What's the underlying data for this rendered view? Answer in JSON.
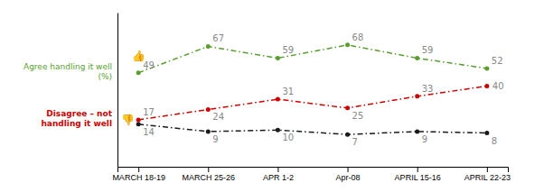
{
  "chart_data": {
    "type": "line",
    "categories": [
      "MARCH 18-19",
      "MARCH 25-26",
      "APR 1-2",
      "Apr-08",
      "APRIL 15-16",
      "APRIL 22-23"
    ],
    "series": [
      {
        "color": "#5a9e2f",
        "values": [
          49,
          67,
          59,
          68,
          59,
          52
        ]
      },
      {
        "color": "#cc0000",
        "values": [
          17,
          24,
          31,
          25,
          33,
          40
        ]
      },
      {
        "color": "#1a1a1a",
        "values": [
          14,
          9,
          10,
          7,
          9,
          8
        ]
      }
    ],
    "ylim": [
      -15,
      90
    ],
    "tick_labels": "x",
    "data_labels": true,
    "marker": "circle",
    "line_style": "dashdot",
    "annotations": [
      {
        "text": "Agree handling it well",
        "color": "#5a9e2f"
      },
      {
        "text": "(%)",
        "color": "#5a9e2f"
      },
      {
        "text": "Disagree – not",
        "color": "#cc0000"
      },
      {
        "text": "handling it well",
        "color": "#cc0000"
      },
      {
        "text": "👍",
        "color": "#5a9e2f"
      },
      {
        "text": "👎",
        "color": "#cc0000"
      }
    ]
  }
}
